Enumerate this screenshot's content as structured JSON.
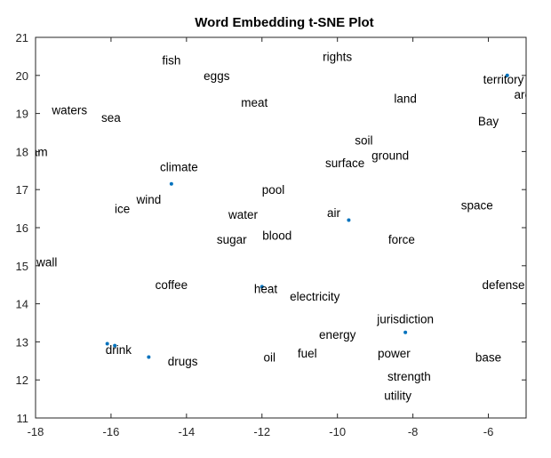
{
  "chart_data": {
    "type": "scatter",
    "title": "Word Embedding t-SNE Plot",
    "xlabel": "",
    "ylabel": "",
    "xlim": [
      -18,
      -5
    ],
    "ylim": [
      11,
      21
    ],
    "xticks": [
      -18,
      -16,
      -14,
      -12,
      -10,
      -8,
      -6
    ],
    "yticks": [
      11,
      12,
      13,
      14,
      15,
      16,
      17,
      18,
      19,
      20,
      21
    ],
    "grid": false,
    "marker_color": "#0072BD",
    "points": [
      {
        "word": "fish",
        "x": -14.4,
        "y": 20.4
      },
      {
        "word": "eggs",
        "x": -13.2,
        "y": 20.0
      },
      {
        "word": "rights",
        "x": -10.0,
        "y": 20.5
      },
      {
        "word": "territory",
        "x": -5.6,
        "y": 19.9
      },
      {
        "word": "area",
        "x": -5.0,
        "y": 19.5
      },
      {
        "word": "meat",
        "x": -12.2,
        "y": 19.3
      },
      {
        "word": "land",
        "x": -8.2,
        "y": 19.4
      },
      {
        "word": "waters",
        "x": -17.1,
        "y": 19.1
      },
      {
        "word": "sea",
        "x": -16.0,
        "y": 18.9
      },
      {
        "word": "Bay",
        "x": -6.0,
        "y": 18.8
      },
      {
        "word": "soil",
        "x": -9.3,
        "y": 18.3
      },
      {
        "word": "am",
        "x": -17.9,
        "y": 18.0
      },
      {
        "word": "ground",
        "x": -8.6,
        "y": 17.9
      },
      {
        "word": "surface",
        "x": -9.8,
        "y": 17.7
      },
      {
        "word": "climate",
        "x": -14.2,
        "y": 17.6
      },
      {
        "word": "pool",
        "x": -11.7,
        "y": 17.0
      },
      {
        "word": "wind",
        "x": -15.0,
        "y": 16.75
      },
      {
        "word": "space",
        "x": -6.3,
        "y": 16.6
      },
      {
        "word": "ice",
        "x": -15.7,
        "y": 16.5
      },
      {
        "word": "water",
        "x": -12.5,
        "y": 16.35
      },
      {
        "word": "air",
        "x": -10.1,
        "y": 16.4
      },
      {
        "word": "blood",
        "x": -11.6,
        "y": 15.8
      },
      {
        "word": "sugar",
        "x": -12.8,
        "y": 15.7
      },
      {
        "word": "force",
        "x": -8.3,
        "y": 15.7
      },
      {
        "word": "wall",
        "x": -17.7,
        "y": 15.1
      },
      {
        "word": "coffee",
        "x": -14.4,
        "y": 14.5
      },
      {
        "word": "defense",
        "x": -5.6,
        "y": 14.5
      },
      {
        "word": "heat",
        "x": -11.9,
        "y": 14.4
      },
      {
        "word": "electricity",
        "x": -10.6,
        "y": 14.2
      },
      {
        "word": "jurisdiction",
        "x": -8.2,
        "y": 13.6
      },
      {
        "word": "energy",
        "x": -10.0,
        "y": 13.2
      },
      {
        "word": "drink",
        "x": -15.8,
        "y": 12.8
      },
      {
        "word": "drugs",
        "x": -14.1,
        "y": 12.5
      },
      {
        "word": "oil",
        "x": -11.8,
        "y": 12.6
      },
      {
        "word": "fuel",
        "x": -10.8,
        "y": 12.7
      },
      {
        "word": "power",
        "x": -8.5,
        "y": 12.7
      },
      {
        "word": "base",
        "x": -6.0,
        "y": 12.6
      },
      {
        "word": "strength",
        "x": -8.1,
        "y": 12.1
      },
      {
        "word": "utility",
        "x": -8.4,
        "y": 11.6
      }
    ],
    "extra_markers": [
      {
        "x": -16.1,
        "y": 12.95
      },
      {
        "x": -15.9,
        "y": 12.9
      },
      {
        "x": -15.0,
        "y": 12.6
      },
      {
        "x": -9.7,
        "y": 16.2
      },
      {
        "x": -8.2,
        "y": 13.25
      },
      {
        "x": -5.5,
        "y": 20.0
      },
      {
        "x": -14.4,
        "y": 17.15
      },
      {
        "x": -12.0,
        "y": 14.45
      }
    ]
  }
}
